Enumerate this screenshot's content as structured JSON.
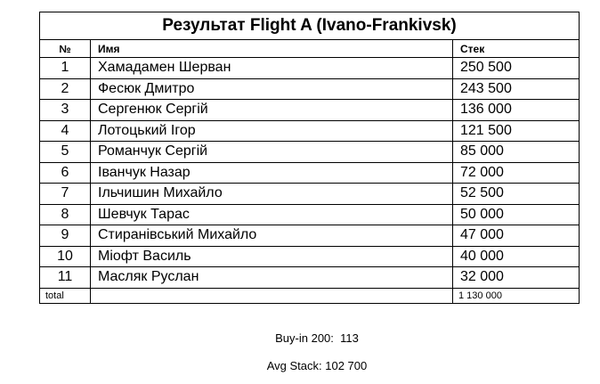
{
  "table": {
    "title": "Результат Flight A (Ivano-Frankivsk)",
    "header": [
      "№",
      "Имя",
      "Стек"
    ],
    "rows": [
      [
        "1",
        "Хамадамен Шерван",
        "250 500"
      ],
      [
        "2",
        "Фесюк Дмитро",
        "243 500"
      ],
      [
        "3",
        "Сергенюк Сергій",
        "136 000"
      ],
      [
        "4",
        "Лотоцький Ігор",
        "121 500"
      ],
      [
        "5",
        "Романчук Сергій",
        "85 000"
      ],
      [
        "6",
        "Іванчук Назар",
        "72 000"
      ],
      [
        "7",
        "Ільчишин Михайло",
        "52 500"
      ],
      [
        "8",
        "Шевчук Тарас",
        "50 000"
      ],
      [
        "9",
        "Стиранівський Михайло",
        "47 000"
      ],
      [
        "10",
        "Міофт Василь",
        "40 000"
      ],
      [
        "11",
        "Масляк Руслан",
        "32 000"
      ]
    ],
    "total": {
      "label": "total",
      "value": "1 130 000"
    }
  },
  "footer": {
    "buyin": "Buy-in 200:  113",
    "avg": "Avg Stack: 102 700"
  }
}
